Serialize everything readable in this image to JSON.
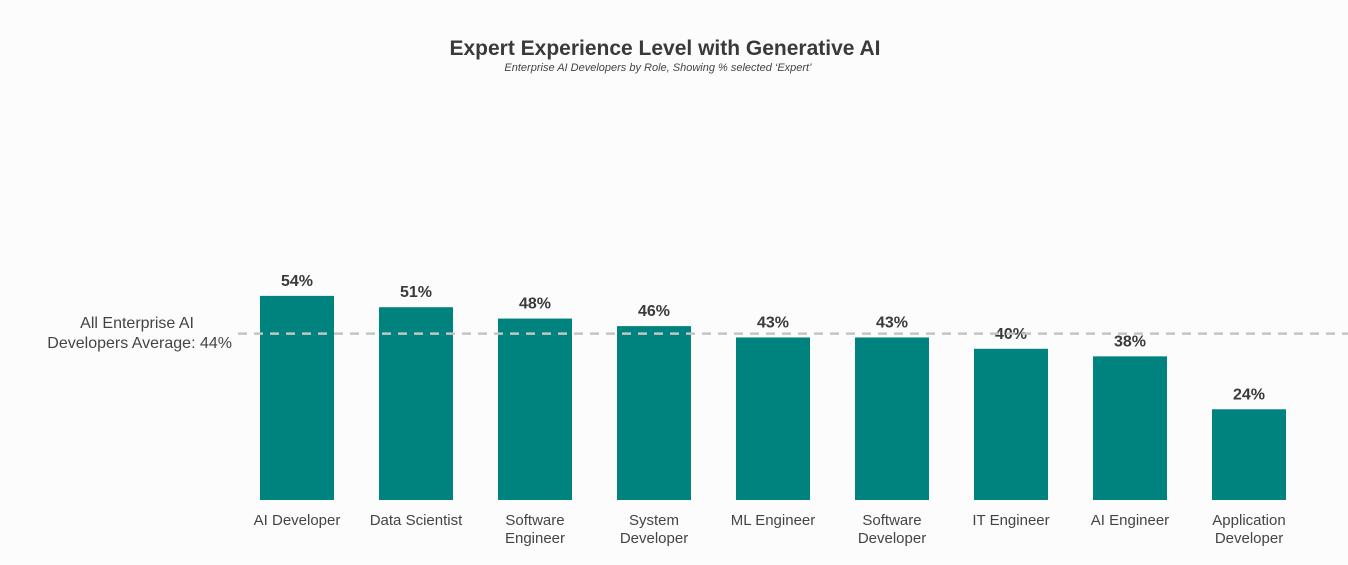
{
  "chart_data": {
    "type": "bar",
    "title": "Expert Experience Level with Generative AI",
    "subtitle": "Enterprise AI Developers by Role, Showing % selected ‘Expert’",
    "categories": [
      [
        "AI Developer"
      ],
      [
        "Data Scientist"
      ],
      [
        "Software",
        "Engineer"
      ],
      [
        "System",
        "Developer"
      ],
      [
        "ML Engineer"
      ],
      [
        "Software",
        "Developer"
      ],
      [
        "IT Engineer"
      ],
      [
        "AI Engineer"
      ],
      [
        "Application",
        "Developer"
      ]
    ],
    "values": [
      54,
      51,
      48,
      46,
      43,
      43,
      40,
      38,
      24
    ],
    "value_labels": [
      "54%",
      "51%",
      "48%",
      "46%",
      "43%",
      "43%",
      "40%",
      "38%",
      "24%"
    ],
    "ylim": [
      0,
      100
    ],
    "average": {
      "value": 44,
      "label_line1": "All Enterprise AI",
      "label_line2": "Developers Average: 44%"
    },
    "colors": {
      "bar": "#00827f",
      "avg_line": "#c4c4c4",
      "text": "#3a3a3a"
    }
  }
}
